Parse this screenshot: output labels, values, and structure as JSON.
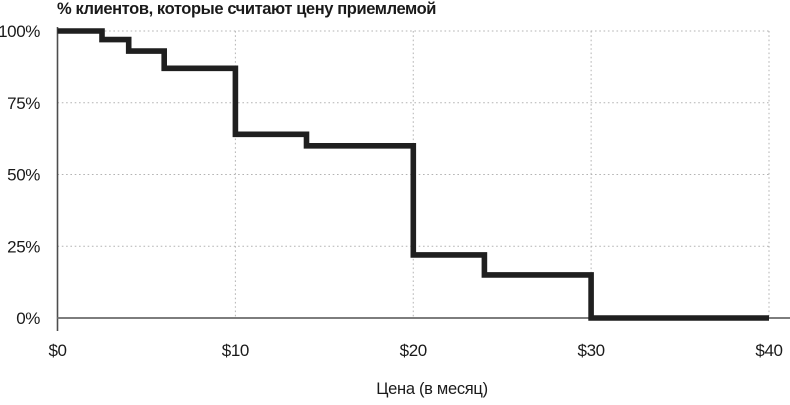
{
  "chart_data": {
    "type": "line",
    "subtype": "step",
    "title": "% клиентов, которые считают цену приемлемой",
    "xlabel": "Цена (в месяц)",
    "xlim": [
      0,
      40
    ],
    "ylim": [
      0,
      100
    ],
    "grid": true,
    "legend": "none",
    "x_ticks": [
      {
        "label": "$0",
        "value": 0
      },
      {
        "label": "$10",
        "value": 10
      },
      {
        "label": "$20",
        "value": 20
      },
      {
        "label": "$30",
        "value": 30
      },
      {
        "label": "$40",
        "value": 40
      }
    ],
    "y_ticks": [
      {
        "label": "0%",
        "value": 0
      },
      {
        "label": "25%",
        "value": 25
      },
      {
        "label": "50%",
        "value": 50
      },
      {
        "label": "75%",
        "value": 75
      },
      {
        "label": "100%",
        "value": 100
      }
    ],
    "series": [
      {
        "steps": [
          {
            "price_from": 0,
            "price_to": 2.5,
            "percent": 100
          },
          {
            "price_from": 2.5,
            "price_to": 4,
            "percent": 97
          },
          {
            "price_from": 4,
            "price_to": 6,
            "percent": 93
          },
          {
            "price_from": 6,
            "price_to": 10,
            "percent": 87
          },
          {
            "price_from": 10,
            "price_to": 14,
            "percent": 64
          },
          {
            "price_from": 14,
            "price_to": 20,
            "percent": 60
          },
          {
            "price_from": 20,
            "price_to": 24,
            "percent": 22
          },
          {
            "price_from": 24,
            "price_to": 30,
            "percent": 15
          },
          {
            "price_from": 30,
            "price_to": 40,
            "percent": 0
          }
        ]
      }
    ],
    "colors": {
      "line": "#1f1f1f",
      "text": "#1a1a1a",
      "y_axis": "#4d4d4d",
      "x_axis": "#7d7d7d",
      "gridline": "#b3b3b3",
      "background": "#ffffff"
    }
  }
}
